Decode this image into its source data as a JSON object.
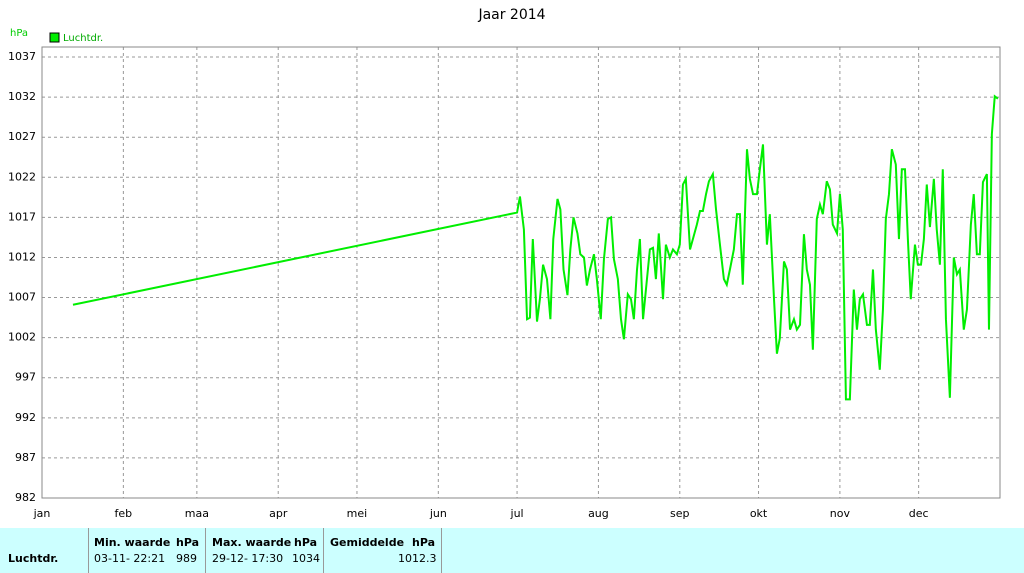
{
  "chart_data": {
    "type": "line",
    "title": "Jaar 2014",
    "y_label": "hPa",
    "xlim": [
      0,
      365
    ],
    "xticks": [
      {
        "value": 0,
        "label": "jan"
      },
      {
        "value": 31,
        "label": "feb"
      },
      {
        "value": 59,
        "label": "maa"
      },
      {
        "value": 90,
        "label": "apr"
      },
      {
        "value": 120,
        "label": "mei"
      },
      {
        "value": 151,
        "label": "jun"
      },
      {
        "value": 181,
        "label": "jul"
      },
      {
        "value": 212,
        "label": "aug"
      },
      {
        "value": 243,
        "label": "sep"
      },
      {
        "value": 273,
        "label": "okt"
      },
      {
        "value": 304,
        "label": "nov"
      },
      {
        "value": 334,
        "label": "dec"
      }
    ],
    "ylim": [
      982,
      1038.25
    ],
    "yticks": [
      982,
      987,
      992,
      997,
      1002,
      1007,
      1012,
      1017,
      1022,
      1027,
      1032,
      1037
    ],
    "grid": true,
    "x": [
      11.8,
      181,
      182.1,
      183.6,
      184.8,
      185.9,
      187,
      188.6,
      189.7,
      190.9,
      192.4,
      193.7,
      194.8,
      196.4,
      197.5,
      198.7,
      200.2,
      201.3,
      202.5,
      204,
      205.1,
      206.5,
      207.6,
      208.8,
      210.3,
      211.4,
      212.9,
      214.1,
      215.6,
      216.8,
      217.9,
      219.4,
      220.6,
      221.7,
      223.2,
      224.4,
      225.5,
      226.7,
      227.8,
      229,
      230.1,
      231.6,
      232.8,
      233.9,
      235,
      236.6,
      237.7,
      239.2,
      240.4,
      241.9,
      243,
      244.2,
      245.3,
      246.9,
      248,
      249.5,
      250.7,
      251.8,
      253,
      254.1,
      255.6,
      256.8,
      258.3,
      259.8,
      260.9,
      262.1,
      263.6,
      264.8,
      265.9,
      267,
      268.6,
      269.7,
      270.9,
      272.4,
      273.5,
      274.7,
      276.2,
      277.3,
      278.9,
      280,
      281.1,
      282.7,
      283.8,
      285,
      286.5,
      287.6,
      288.8,
      290.3,
      291.4,
      292.6,
      293.7,
      295.2,
      296.4,
      297.5,
      299,
      300.2,
      301.3,
      302.9,
      304,
      305.1,
      306.3,
      307.8,
      309.3,
      310.5,
      311.6,
      312.8,
      314.3,
      315.4,
      316.6,
      317.7,
      319.2,
      320.4,
      321.5,
      322.7,
      323.8,
      325.3,
      326.5,
      327.6,
      328.8,
      329.9,
      331,
      332.6,
      333.7,
      334.9,
      336,
      337.1,
      338.3,
      339.8,
      340.9,
      342.1,
      343.2,
      344.4,
      345.9,
      347.4,
      348.6,
      349.7,
      351.2,
      352.4,
      353.9,
      355,
      356.2,
      357.3,
      358.5,
      360,
      360.8,
      361.9,
      363,
      364.2
    ],
    "series": [
      {
        "name": "Luchtdr.",
        "color": "#00ee00",
        "values": [
          1006.1,
          1017.6,
          1019.6,
          1015.5,
          1004.3,
          1004.5,
          1014.3,
          1004,
          1006.8,
          1011.1,
          1009.3,
          1004.3,
          1014.3,
          1019.3,
          1018,
          1010.5,
          1007.3,
          1013,
          1017,
          1015,
          1012.4,
          1012,
          1008.5,
          1010.5,
          1012.4,
          1009.3,
          1004.3,
          1011.8,
          1016.8,
          1017,
          1011.8,
          1009.3,
          1004.3,
          1001.8,
          1007.4,
          1006.8,
          1004.3,
          1010.5,
          1014.3,
          1004.3,
          1008,
          1013,
          1013.2,
          1009.3,
          1015,
          1006.8,
          1013.6,
          1012,
          1013,
          1012.4,
          1013.6,
          1021.1,
          1021.8,
          1013,
          1014.3,
          1016.1,
          1017.8,
          1017.8,
          1019.9,
          1021.5,
          1022.4,
          1018,
          1013.6,
          1009.3,
          1008.6,
          1010.5,
          1013,
          1017.4,
          1017.4,
          1008.6,
          1025.5,
          1021.8,
          1019.9,
          1019.9,
          1023,
          1026.1,
          1013.6,
          1017.4,
          1006.8,
          1000,
          1001.9,
          1011.5,
          1010.5,
          1003,
          1004.3,
          1003,
          1003.6,
          1014.9,
          1010.5,
          1008.6,
          1000.5,
          1016.8,
          1018.6,
          1017.4,
          1021.5,
          1020.5,
          1016.1,
          1015,
          1019.9,
          1015.5,
          994.3,
          994.3,
          1008,
          1003,
          1006.8,
          1007.4,
          1003.6,
          1003.6,
          1010.5,
          1003,
          998,
          1005.5,
          1016.8,
          1019.9,
          1025.5,
          1023.6,
          1014.3,
          1023,
          1023,
          1014.3,
          1006.8,
          1013.6,
          1011.1,
          1011.1,
          1014.3,
          1021.1,
          1015.8,
          1021.8,
          1015.5,
          1011.1,
          1023,
          1004.3,
          994.5,
          1012,
          1009.9,
          1010.5,
          1003,
          1005.5,
          1016.1,
          1019.9,
          1012.4,
          1012.4,
          1021.4,
          1022.4,
          1003,
          1027.4,
          1032.1,
          1031.8
        ]
      }
    ]
  },
  "table": {
    "headers": [
      "Min. waarde",
      "hPa",
      "Max. waarde",
      "hPa",
      "Gemiddelde",
      "hPa"
    ],
    "rows": [
      [
        "Luchtdr.",
        "03-11- 22:21",
        "989",
        "29-12- 17:30",
        "1034",
        "1012.3"
      ]
    ]
  }
}
